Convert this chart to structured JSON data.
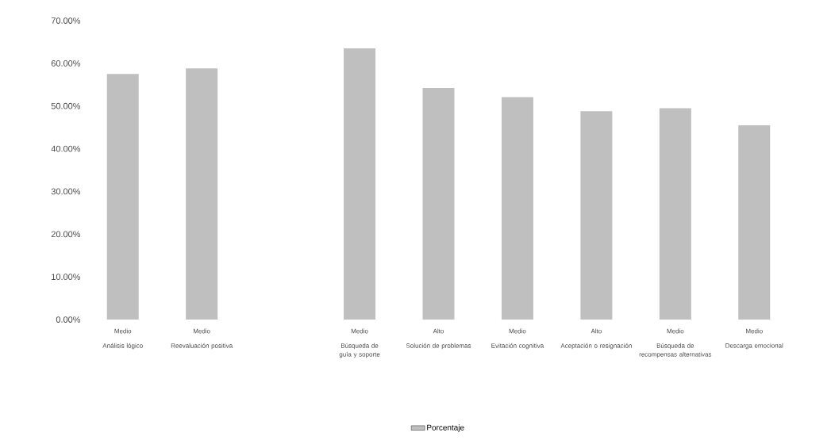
{
  "chart_data": {
    "type": "bar",
    "categories": [
      "Análisis lógico",
      "Reevaluación positiva",
      null,
      "Búsqueda de guía y soporte",
      "Solución de problemas",
      "Evitación cognitiva",
      "Aceptación o resignación",
      "Búsqueda de recompensas alternativas",
      "Descarga emocional"
    ],
    "series": [
      {
        "name": "Porcentaje",
        "color": "#bfbfbf",
        "values": [
          57.5,
          58.8,
          null,
          63.5,
          54.2,
          52.1,
          48.8,
          49.5,
          45.5
        ]
      }
    ],
    "ylim": [
      0,
      70
    ],
    "yticks": [
      {
        "value": 0,
        "label": "0.00%"
      },
      {
        "value": 10,
        "label": "10.00%"
      },
      {
        "value": 20,
        "label": "20.00%"
      },
      {
        "value": 30,
        "label": "30.00%"
      },
      {
        "value": 40,
        "label": "40.00%"
      },
      {
        "value": 50,
        "label": "50.00%"
      },
      {
        "value": 60,
        "label": "60.00%"
      },
      {
        "value": 70,
        "label": "70.00%"
      }
    ],
    "annotations": [
      "Medio",
      "Medio",
      "Medio",
      "Alto",
      "Medio",
      "Alto",
      "Medio",
      "Medio"
    ],
    "legend": "bottom",
    "grid": false
  }
}
